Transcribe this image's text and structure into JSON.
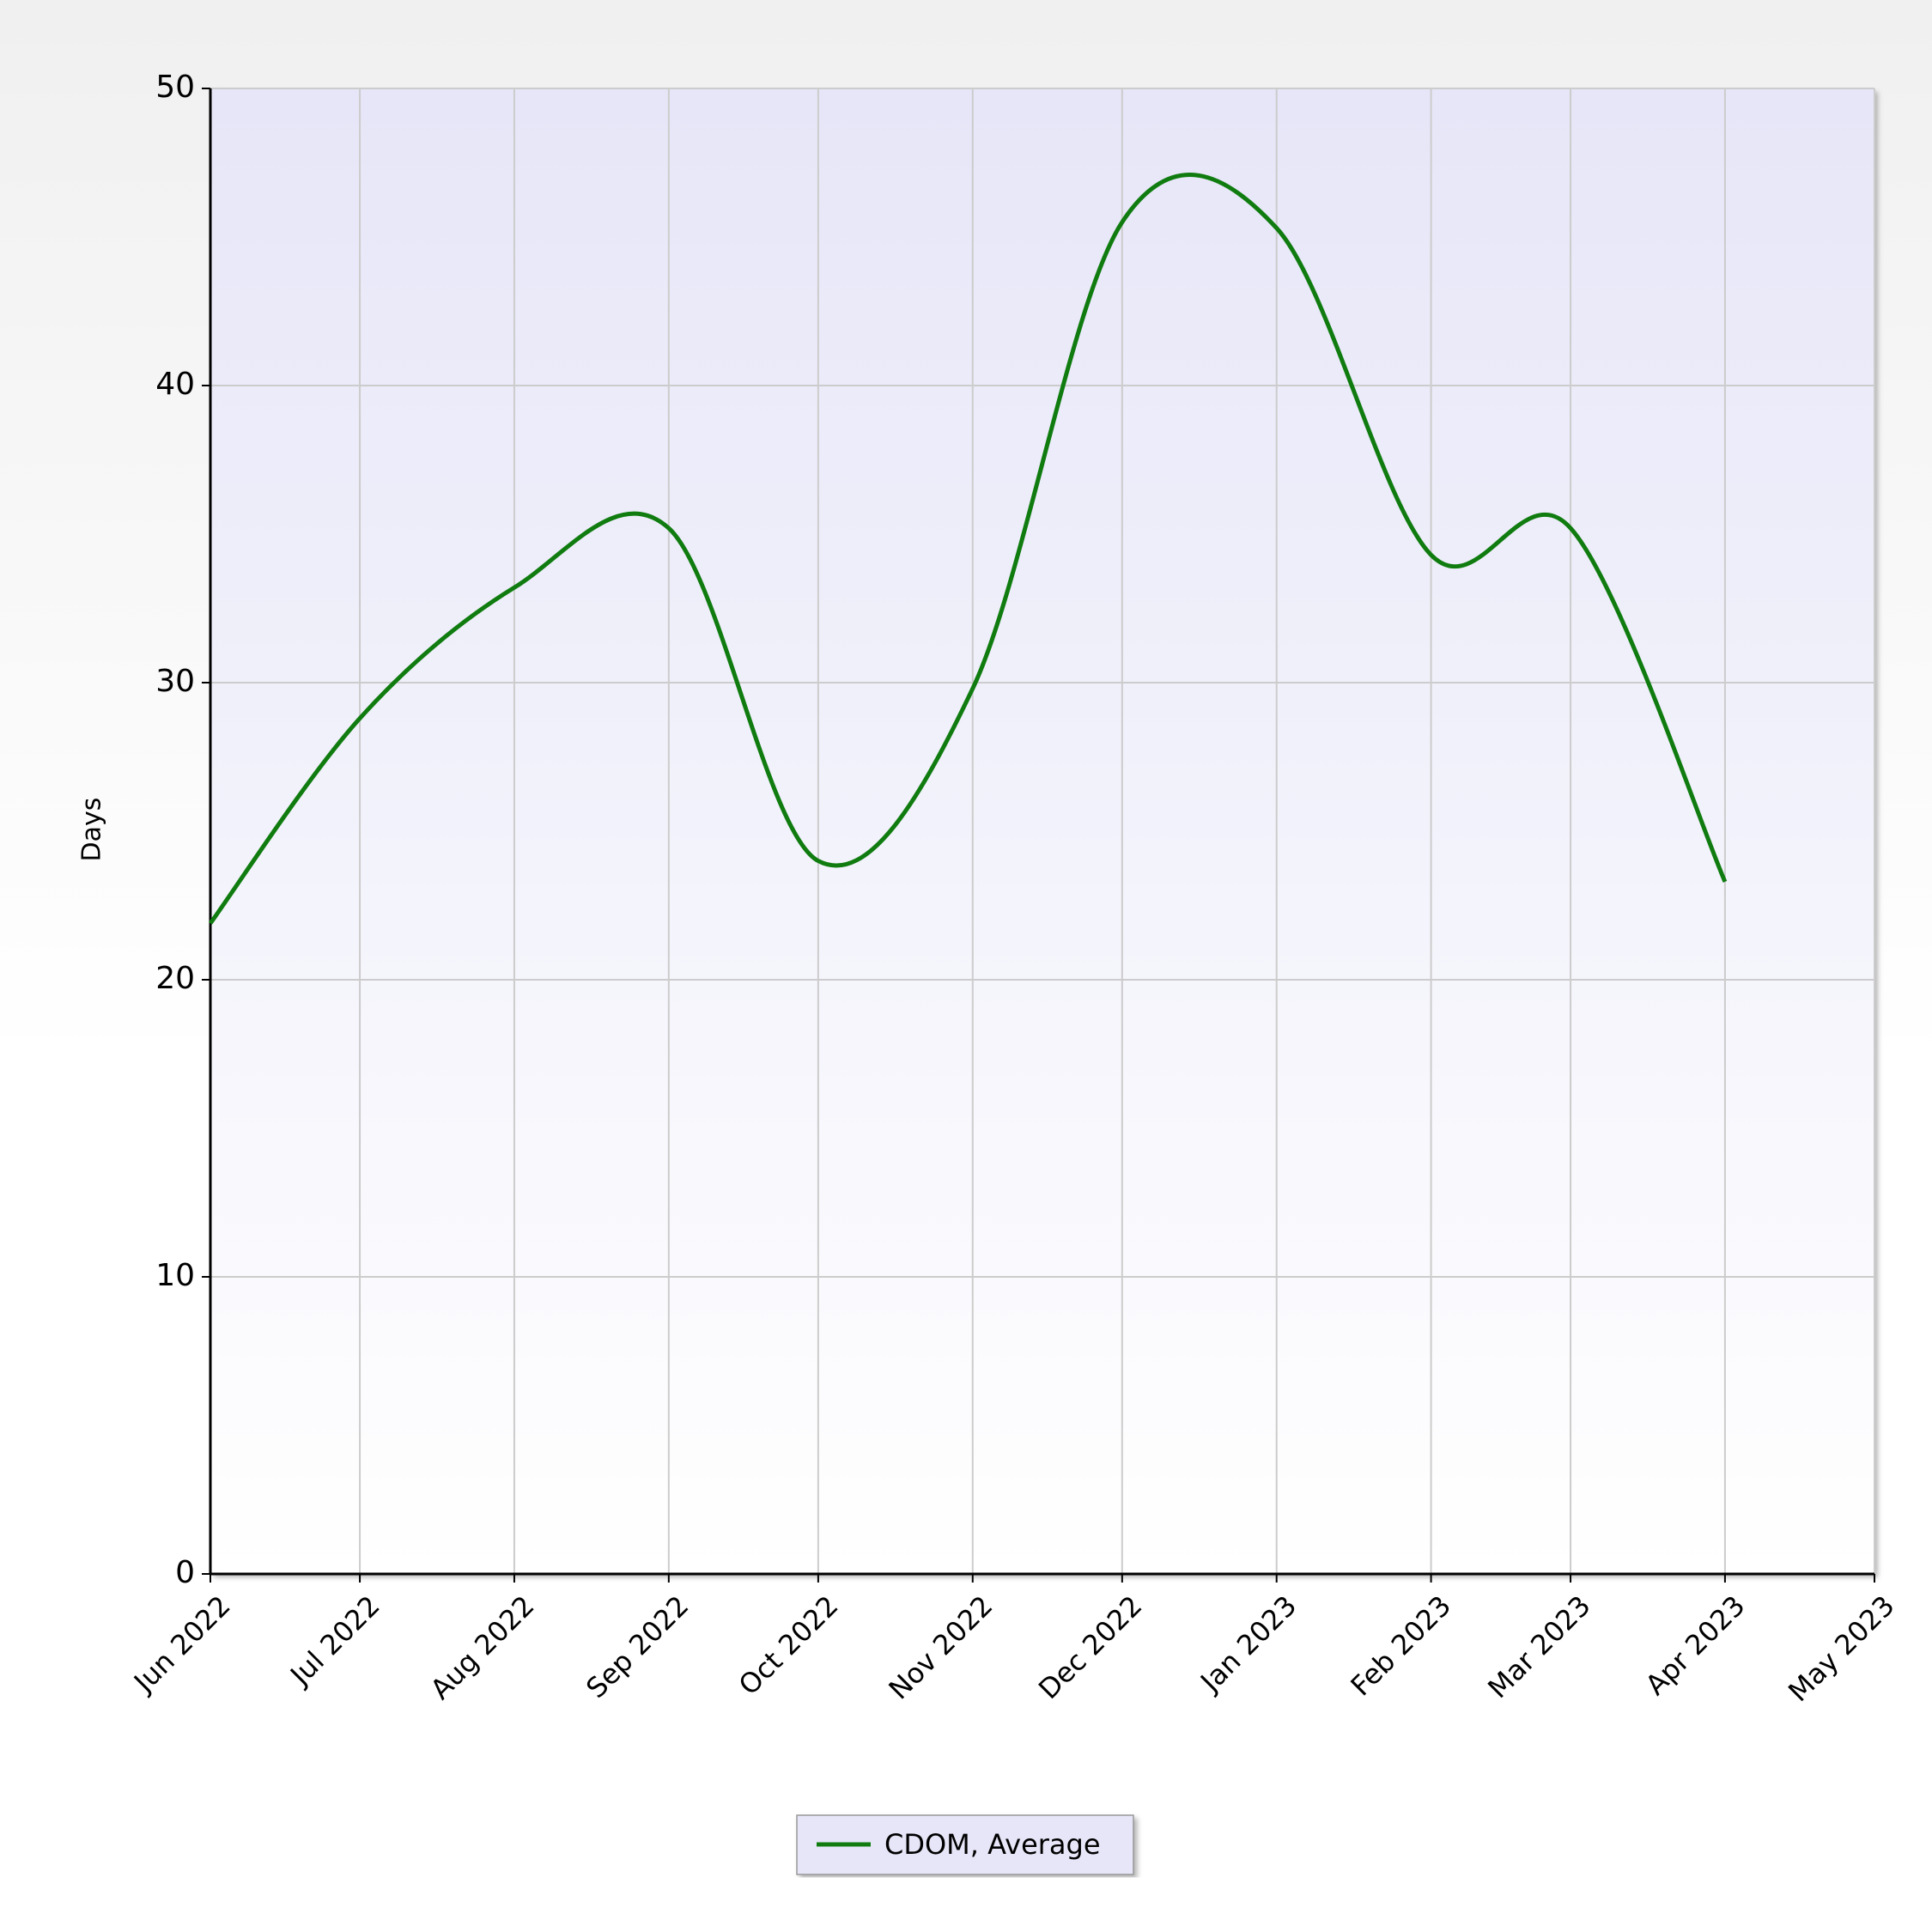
{
  "chart_data": {
    "type": "line",
    "y_label": "Days",
    "x": [
      "2022-06",
      "2022-07",
      "2022-08",
      "2022-09",
      "2022-10",
      "2022-11",
      "2022-12",
      "2023-01",
      "2023-02",
      "2023-03",
      "2023-04"
    ],
    "series": [
      {
        "name": "CDOM, Average",
        "color": "#107c10",
        "values": [
          21.9,
          28.8,
          33.2,
          35.2,
          24.0,
          29.8,
          45.5,
          45.3,
          34.3,
          35.2,
          23.3
        ]
      }
    ],
    "xlim": [
      "2022-06",
      "2023-05"
    ],
    "xticks": [
      {
        "value": "2022-06",
        "label": "Jun 2022"
      },
      {
        "value": "2022-07",
        "label": "Jul 2022"
      },
      {
        "value": "2022-08",
        "label": "Aug 2022"
      },
      {
        "value": "2022-09",
        "label": "Sep 2022"
      },
      {
        "value": "2022-10",
        "label": "Oct 2022"
      },
      {
        "value": "2022-11",
        "label": "Nov 2022"
      },
      {
        "value": "2022-12",
        "label": "Dec 2022"
      },
      {
        "value": "2023-01",
        "label": "Jan 2023"
      },
      {
        "value": "2023-02",
        "label": "Feb 2023"
      },
      {
        "value": "2023-03",
        "label": "Mar 2023"
      },
      {
        "value": "2023-04",
        "label": "Apr 2023"
      },
      {
        "value": "2023-05",
        "label": "May 2023"
      }
    ],
    "ylim": [
      0,
      50
    ],
    "yticks": [
      0,
      10,
      20,
      30,
      40,
      50
    ],
    "grid": true,
    "legend": "bottom"
  }
}
